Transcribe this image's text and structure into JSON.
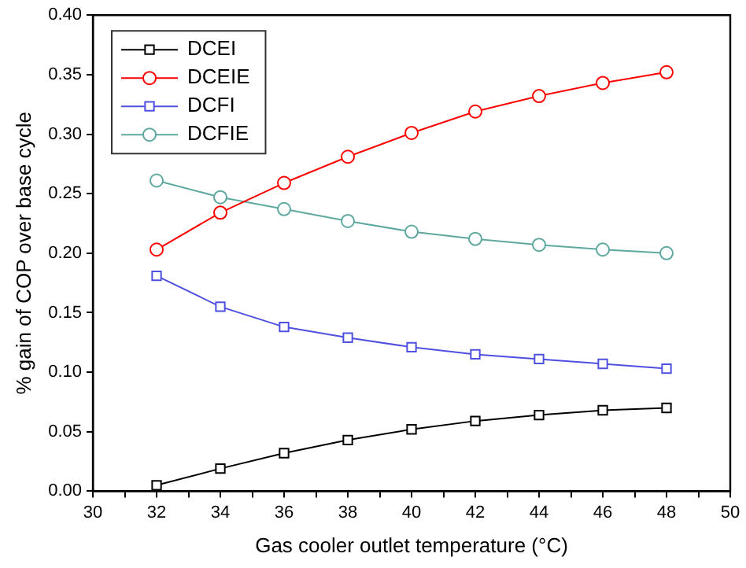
{
  "chart_data": {
    "type": "line",
    "xlabel": "Gas cooler outlet temperature (°C)",
    "ylabel": "% gain of COP over base cycle",
    "x": [
      32,
      34,
      36,
      38,
      40,
      42,
      44,
      46,
      48
    ],
    "series": [
      {
        "name": "DCEI",
        "color": "#000000",
        "marker": "square",
        "values": [
          0.005,
          0.019,
          0.032,
          0.043,
          0.052,
          0.059,
          0.064,
          0.068,
          0.07
        ]
      },
      {
        "name": "DCEIE",
        "color": "#ff0000",
        "marker": "circle",
        "values": [
          0.203,
          0.234,
          0.259,
          0.281,
          0.301,
          0.319,
          0.332,
          0.343,
          0.352
        ]
      },
      {
        "name": "DCFI",
        "color": "#5050e0",
        "marker": "square",
        "values": [
          0.181,
          0.155,
          0.138,
          0.129,
          0.121,
          0.115,
          0.111,
          0.107,
          0.103
        ]
      },
      {
        "name": "DCFIE",
        "color": "#5ea8a0",
        "marker": "circle",
        "values": [
          0.261,
          0.247,
          0.237,
          0.227,
          0.218,
          0.212,
          0.207,
          0.203,
          0.2
        ]
      }
    ],
    "xlim": [
      30,
      50
    ],
    "xticks": [
      30,
      {
        "value": 31,
        "label": null
      },
      32,
      {
        "value": 33,
        "label": null
      },
      34,
      {
        "value": 35,
        "label": null
      },
      36,
      {
        "value": 37,
        "label": null
      },
      38,
      {
        "value": 39,
        "label": null
      },
      40,
      {
        "value": 41,
        "label": null
      },
      42,
      {
        "value": 43,
        "label": null
      },
      44,
      {
        "value": 45,
        "label": null
      },
      46,
      {
        "value": 47,
        "label": null
      },
      48,
      {
        "value": 49,
        "label": null
      },
      50
    ],
    "ylim": [
      0,
      0.4
    ],
    "yticks": [
      {
        "value": 0,
        "label": "0.00"
      },
      {
        "value": 0.05,
        "label": "0.05"
      },
      {
        "value": 0.1,
        "label": "0.10"
      },
      {
        "value": 0.15,
        "label": "0.15"
      },
      {
        "value": 0.2,
        "label": "0.20"
      },
      {
        "value": 0.25,
        "label": "0.25"
      },
      {
        "value": 0.3,
        "label": "0.30"
      },
      {
        "value": 0.35,
        "label": "0.35"
      },
      {
        "value": 0.4,
        "label": "0.40"
      }
    ],
    "grid": false,
    "legend": "top left",
    "line_style": "solid"
  }
}
